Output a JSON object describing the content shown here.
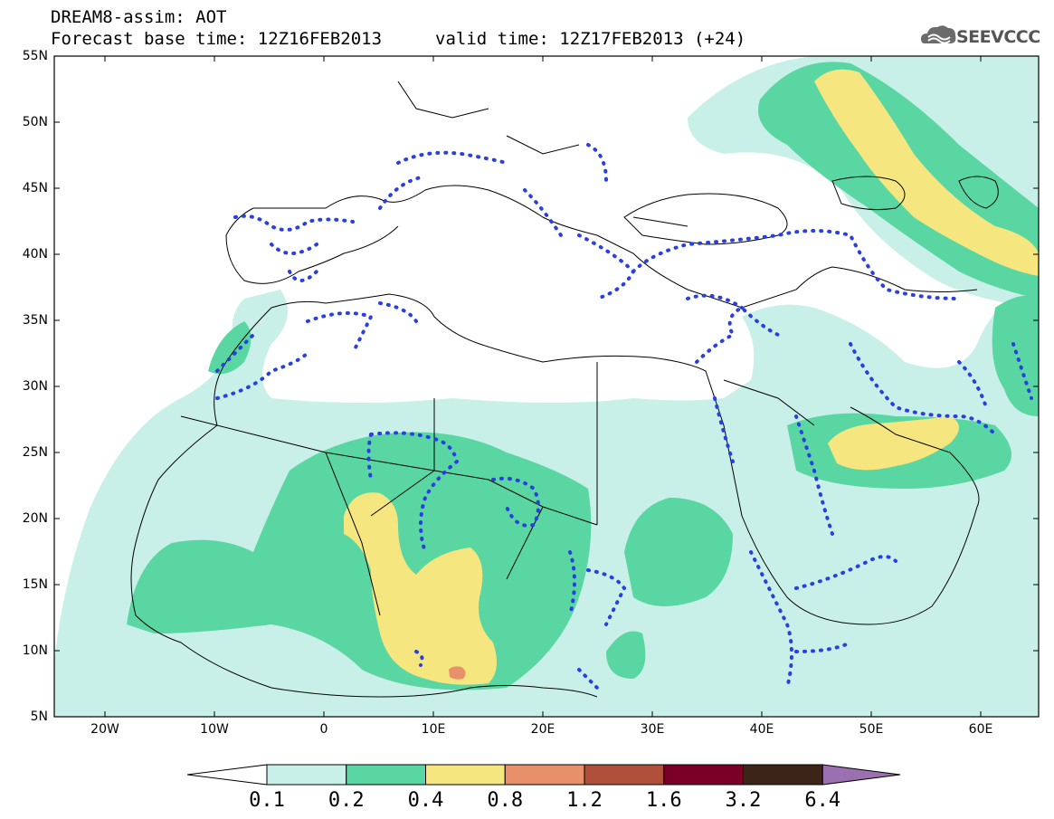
{
  "header": {
    "title": "DREAM8-assim: AOT",
    "base_time": "Forecast base time: 12Z16FEB2013",
    "valid_time": "valid time: 12Z17FEB2013 (+24)",
    "logo_text": "SEEVCCC"
  },
  "map": {
    "lon_range": [
      -25,
      65
    ],
    "lat_range": [
      5,
      55
    ],
    "lat_labels": [
      "55N",
      "50N",
      "45N",
      "40N",
      "35N",
      "30N",
      "25N",
      "20N",
      "15N",
      "10N",
      "5N"
    ],
    "lon_labels": [
      "20W",
      "10W",
      "0",
      "10E",
      "20E",
      "30E",
      "40E",
      "50E",
      "60E"
    ]
  },
  "legend": {
    "thresholds": [
      "0.1",
      "0.2",
      "0.4",
      "0.8",
      "1.2",
      "1.6",
      "3.2",
      "6.4"
    ],
    "colors": [
      "#ffffff",
      "#c8f0e8",
      "#5ad6a2",
      "#f5e680",
      "#e8906a",
      "#b0503a",
      "#7a0028",
      "#3b2418",
      "#9a70b0"
    ]
  }
}
